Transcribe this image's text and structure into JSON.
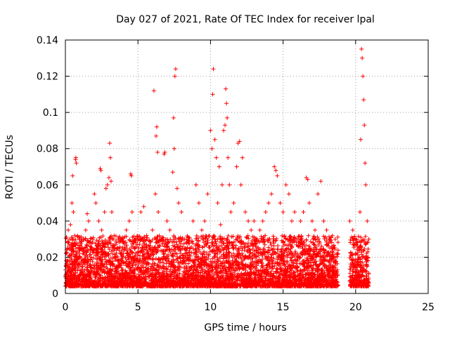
{
  "chart_data": {
    "type": "scatter",
    "title": "Day 027 of 2021, Rate Of TEC Index for receiver lpal",
    "xlabel": "GPS time / hours",
    "ylabel": "ROTI / TECUs",
    "xlim": [
      0,
      25
    ],
    "ylim": [
      0,
      0.14
    ],
    "xticks": [
      0,
      5,
      10,
      15,
      20,
      25
    ],
    "yticks": [
      0,
      0.02,
      0.04,
      0.06,
      0.08,
      0.1,
      0.12,
      0.14
    ],
    "xtick_labels": [
      "0",
      "5",
      "10",
      "15",
      "20",
      "25"
    ],
    "ytick_labels": [
      "0",
      "0.02",
      "0.04",
      "0.06",
      "0.08",
      "0.1",
      "0.12",
      "0.14"
    ],
    "grid": true,
    "marker": "+",
    "color": "#ff0000",
    "series": [
      {
        "points": [
          [
            0.1,
            0.012
          ],
          [
            0.15,
            0.025
          ],
          [
            0.2,
            0.035
          ],
          [
            0.25,
            0.018
          ],
          [
            0.3,
            0.03
          ],
          [
            0.35,
            0.038
          ],
          [
            0.4,
            0.022
          ],
          [
            0.45,
            0.05
          ],
          [
            0.5,
            0.065
          ],
          [
            0.55,
            0.045
          ],
          [
            0.6,
            0.028
          ],
          [
            0.65,
            0.015
          ],
          [
            0.7,
            0.074
          ],
          [
            0.72,
            0.075
          ],
          [
            0.75,
            0.072
          ],
          [
            0.8,
            0.02
          ],
          [
            0.9,
            0.016
          ],
          [
            1.0,
            0.03
          ],
          [
            1.1,
            0.018
          ],
          [
            1.2,
            0.022
          ],
          [
            1.3,
            0.025
          ],
          [
            1.4,
            0.035
          ],
          [
            1.5,
            0.044
          ],
          [
            1.6,
            0.04
          ],
          [
            1.7,
            0.028
          ],
          [
            1.8,
            0.02
          ],
          [
            1.9,
            0.03
          ],
          [
            2.0,
            0.055
          ],
          [
            2.1,
            0.05
          ],
          [
            2.2,
            0.025
          ],
          [
            2.3,
            0.04
          ],
          [
            2.4,
            0.069
          ],
          [
            2.45,
            0.068
          ],
          [
            2.5,
            0.035
          ],
          [
            2.6,
            0.028
          ],
          [
            2.7,
            0.045
          ],
          [
            2.8,
            0.058
          ],
          [
            2.9,
            0.06
          ],
          [
            3.0,
            0.064
          ],
          [
            3.05,
            0.083
          ],
          [
            3.1,
            0.075
          ],
          [
            3.15,
            0.062
          ],
          [
            3.2,
            0.045
          ],
          [
            3.3,
            0.03
          ],
          [
            3.4,
            0.025
          ],
          [
            3.5,
            0.02
          ],
          [
            3.6,
            0.018
          ],
          [
            3.8,
            0.022
          ],
          [
            4.0,
            0.028
          ],
          [
            4.2,
            0.035
          ],
          [
            4.4,
            0.04
          ],
          [
            4.5,
            0.066
          ],
          [
            4.55,
            0.065
          ],
          [
            4.6,
            0.045
          ],
          [
            4.8,
            0.025
          ],
          [
            5.0,
            0.03
          ],
          [
            5.2,
            0.045
          ],
          [
            5.4,
            0.048
          ],
          [
            5.6,
            0.03
          ],
          [
            5.8,
            0.025
          ],
          [
            6.0,
            0.035
          ],
          [
            6.1,
            0.112
          ],
          [
            6.2,
            0.055
          ],
          [
            6.25,
            0.087
          ],
          [
            6.3,
            0.092
          ],
          [
            6.35,
            0.078
          ],
          [
            6.4,
            0.045
          ],
          [
            6.6,
            0.03
          ],
          [
            6.8,
            0.077
          ],
          [
            6.85,
            0.078
          ],
          [
            7.0,
            0.04
          ],
          [
            7.2,
            0.035
          ],
          [
            7.4,
            0.067
          ],
          [
            7.45,
            0.097
          ],
          [
            7.5,
            0.08
          ],
          [
            7.55,
            0.12
          ],
          [
            7.6,
            0.124
          ],
          [
            7.7,
            0.058
          ],
          [
            7.8,
            0.05
          ],
          [
            8.0,
            0.045
          ],
          [
            8.2,
            0.03
          ],
          [
            8.4,
            0.02
          ],
          [
            8.6,
            0.025
          ],
          [
            8.8,
            0.04
          ],
          [
            9.0,
            0.06
          ],
          [
            9.2,
            0.05
          ],
          [
            9.4,
            0.035
          ],
          [
            9.6,
            0.04
          ],
          [
            9.8,
            0.055
          ],
          [
            10.0,
            0.09
          ],
          [
            10.1,
            0.08
          ],
          [
            10.15,
            0.11
          ],
          [
            10.2,
            0.124
          ],
          [
            10.3,
            0.085
          ],
          [
            10.4,
            0.075
          ],
          [
            10.5,
            0.05
          ],
          [
            10.6,
            0.07
          ],
          [
            10.7,
            0.038
          ],
          [
            10.8,
            0.06
          ],
          [
            10.9,
            0.09
          ],
          [
            11.0,
            0.093
          ],
          [
            11.05,
            0.113
          ],
          [
            11.1,
            0.105
          ],
          [
            11.15,
            0.097
          ],
          [
            11.2,
            0.075
          ],
          [
            11.3,
            0.06
          ],
          [
            11.4,
            0.045
          ],
          [
            11.6,
            0.05
          ],
          [
            11.8,
            0.07
          ],
          [
            11.9,
            0.083
          ],
          [
            12.0,
            0.084
          ],
          [
            12.1,
            0.06
          ],
          [
            12.2,
            0.075
          ],
          [
            12.4,
            0.045
          ],
          [
            12.6,
            0.04
          ],
          [
            12.8,
            0.035
          ],
          [
            13.0,
            0.04
          ],
          [
            13.2,
            0.03
          ],
          [
            13.4,
            0.035
          ],
          [
            13.6,
            0.04
          ],
          [
            13.8,
            0.045
          ],
          [
            14.0,
            0.05
          ],
          [
            14.2,
            0.055
          ],
          [
            14.4,
            0.07
          ],
          [
            14.5,
            0.068
          ],
          [
            14.6,
            0.065
          ],
          [
            14.8,
            0.05
          ],
          [
            15.0,
            0.045
          ],
          [
            15.2,
            0.06
          ],
          [
            15.4,
            0.055
          ],
          [
            15.6,
            0.04
          ],
          [
            15.8,
            0.045
          ],
          [
            16.0,
            0.03
          ],
          [
            16.2,
            0.04
          ],
          [
            16.4,
            0.045
          ],
          [
            16.6,
            0.064
          ],
          [
            16.7,
            0.063
          ],
          [
            16.8,
            0.05
          ],
          [
            17.0,
            0.04
          ],
          [
            17.2,
            0.035
          ],
          [
            17.4,
            0.055
          ],
          [
            17.6,
            0.062
          ],
          [
            17.8,
            0.04
          ],
          [
            18.0,
            0.035
          ],
          [
            18.2,
            0.03
          ],
          [
            18.4,
            0.025
          ],
          [
            18.6,
            0.02
          ],
          [
            19.6,
            0.04
          ],
          [
            19.8,
            0.035
          ],
          [
            20.0,
            0.03
          ],
          [
            20.2,
            0.025
          ],
          [
            20.3,
            0.045
          ],
          [
            20.35,
            0.085
          ],
          [
            20.4,
            0.135
          ],
          [
            20.45,
            0.13
          ],
          [
            20.5,
            0.12
          ],
          [
            20.55,
            0.107
          ],
          [
            20.6,
            0.093
          ],
          [
            20.65,
            0.072
          ],
          [
            20.7,
            0.06
          ],
          [
            20.8,
            0.04
          ],
          [
            20.9,
            0.03
          ]
        ]
      }
    ]
  }
}
